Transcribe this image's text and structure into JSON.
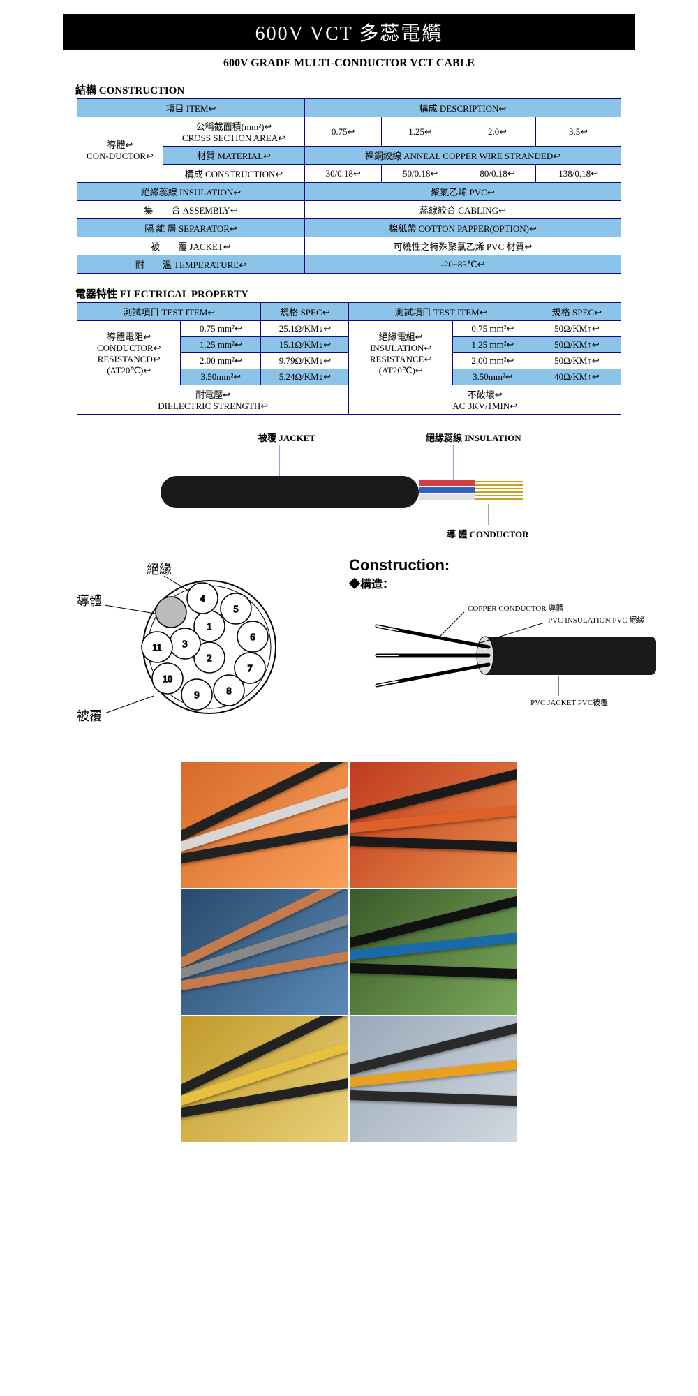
{
  "colors": {
    "header_bg": "#8cc3e8",
    "border": "#0a0a80",
    "title_bg": "#000000",
    "title_fg": "#ffffff"
  },
  "title_bar": "600V VCT  多蕊電纜",
  "subtitle": "600V GRADE MULTI-CONDUCTOR VCT CABLE",
  "construction": {
    "heading": "結構  CONSTRUCTION",
    "item_hdr": "項目 ITEM↩",
    "desc_hdr": "構成 DESCRIPTION↩",
    "conductor_label": "導體↩\nCON-DUCTOR↩",
    "cross_section_label": "公稱截面積(mm²)↩\nCROSS SECTION AREA↩",
    "cross_section_vals": [
      "0.75↩",
      "1.25↩",
      "2.0↩",
      "3.5↩"
    ],
    "material_label": "材質 MATERIAL↩",
    "material_val": "裸銅絞線 ANNEAL COPPER WIRE STRANDED↩",
    "construction_label": "構成 CONSTRUCTION↩",
    "construction_vals": [
      "30/0.18↩",
      "50/0.18↩",
      "80/0.18↩",
      "138/0.18↩"
    ],
    "insulation_label": "絕緣蕊線 INSULATION↩",
    "insulation_val": "聚氯乙烯 PVC↩",
    "assembly_label": "集　　合 ASSEMBLY↩",
    "assembly_val": "蕊線絞合 CABLING↩",
    "separator_label": "隔 離 層 SEPARATOR↩",
    "separator_val": "棉紙帶 COTTON PAPPER(OPTION)↩",
    "jacket_label": "被　　覆 JACKET↩",
    "jacket_val": "可繞性之特殊聚氯乙烯 PVC 材質↩",
    "temp_label": "耐　　溫 TEMPERATURE↩",
    "temp_val": "-20~85℃↩"
  },
  "electrical": {
    "heading": "電器特性  ELECTRICAL PROPERTY",
    "test_item_hdr": "測試項目 TEST ITEM↩",
    "spec_hdr": "規格 SPEC↩",
    "cond_res_label": "導體電阻↩\nCONDUCTOR↩\nRESISTANCD↩\n(AT20℃)↩",
    "ins_res_label": "絕緣電組↩\nINSULATION↩\nRESISTANCE↩\n(AT20℃)↩",
    "sizes": [
      "0.75 mm²↩",
      "1.25 mm²↩",
      "2.00 mm²↩",
      "3.50mm²↩"
    ],
    "cond_specs": [
      "25.1Ω/KM↓↩",
      "15.1Ω/KM↓↩",
      "9.79Ω/KM↓↩",
      "5.24Ω/KM↓↩"
    ],
    "ins_specs": [
      "50Ω/KM↑↩",
      "50Ω/KM↑↩",
      "50Ω/KM↑↩",
      "40Ω/KM↑↩"
    ],
    "dielectric_label": "耐電壓↩\nDIELECTRIC STRENGTH↩",
    "dielectric_val": "不破壞↩\nAC 3KV/1MIN↩"
  },
  "diagram": {
    "jacket": "被覆 JACKET",
    "insulation": "絕緣蕊線 INSULATION",
    "conductor": "導 體 CONDUCTOR",
    "cross_insulation": "絕緣",
    "cross_conductor": "導體",
    "cross_jacket": "被覆",
    "construction_title": "Construction:",
    "construction_sub": "◆構造：",
    "copper": "COPPER CONDUCTOR 導體",
    "pvc_ins": "PVC INSULATION PVC 絕緣",
    "pvc_jkt": "PVC JACKET PVC被覆"
  },
  "photo_grid": {
    "tiles": [
      {
        "bg1": "#d86a2a",
        "bg2": "#f9a05a",
        "cable": "#222222",
        "accent": "#d6d6d6"
      },
      {
        "bg1": "#c03a1e",
        "bg2": "#e88c4a",
        "cable": "#1a1a1a",
        "accent": "#e0602a"
      },
      {
        "bg1": "#2a4a6a",
        "bg2": "#5a8ab8",
        "cable": "#c67a4a",
        "accent": "#888888"
      },
      {
        "bg1": "#3a5a2a",
        "bg2": "#7aa85a",
        "cable": "#111111",
        "accent": "#1a6aa8"
      },
      {
        "bg1": "#c29a2a",
        "bg2": "#e8d07a",
        "cable": "#222222",
        "accent": "#e8c040"
      },
      {
        "bg1": "#9aa8b8",
        "bg2": "#d0d8e0",
        "cable": "#2a2a2a",
        "accent": "#e8a020"
      }
    ]
  }
}
